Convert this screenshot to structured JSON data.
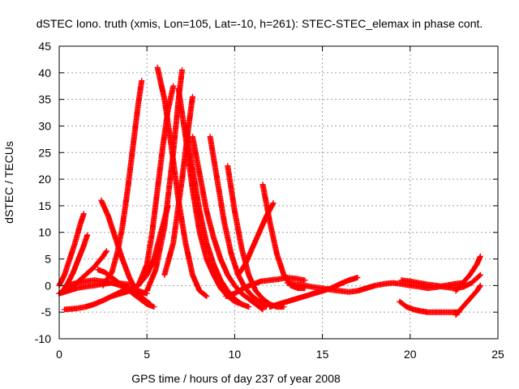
{
  "chart_data": {
    "type": "scatter",
    "title": "dSTEC Iono. truth (xmis, Lon=105, Lat=-10, h=261): STEC-STEC_elemax in phase cont.",
    "xlabel": "GPS time / hours of day 237 of year 2008",
    "ylabel": "dSTEC  / TECUs",
    "xlim": [
      0,
      25
    ],
    "ylim": [
      -10,
      45
    ],
    "xticks": [
      0,
      5,
      10,
      15,
      20,
      25
    ],
    "yticks": [
      -10,
      -5,
      0,
      5,
      10,
      15,
      20,
      25,
      30,
      35,
      40,
      45
    ],
    "grid": true,
    "marker": "+",
    "color": "#ff0000",
    "series": [
      {
        "x": [
          0.0,
          0.3,
          0.6,
          0.9,
          1.2,
          1.4
        ],
        "y": [
          0,
          2,
          5,
          8,
          11.5,
          13.5
        ]
      },
      {
        "x": [
          0.2,
          0.5,
          0.8,
          1.1,
          1.4,
          1.6
        ],
        "y": [
          -1,
          0.5,
          2.5,
          5,
          7.5,
          9.5
        ]
      },
      {
        "x": [
          0.0,
          0.5,
          1.0,
          1.5,
          2.0,
          2.5,
          2.7
        ],
        "y": [
          -1.5,
          -0.5,
          0.5,
          2,
          3.5,
          5.5,
          6.5
        ]
      },
      {
        "x": [
          0.0,
          0.5,
          1.0,
          1.5,
          2.0,
          2.5,
          3.0,
          3.5,
          4.0
        ],
        "y": [
          -1.5,
          -1,
          -0.5,
          -0.2,
          0,
          0.3,
          0.5,
          0.4,
          0.2
        ]
      },
      {
        "x": [
          0.3,
          1.0,
          1.5,
          2.0,
          2.5,
          3.0,
          3.5,
          4.0
        ],
        "y": [
          -4.5,
          -4.3,
          -4,
          -3.5,
          -2.8,
          -2,
          -1.2,
          -0.5
        ]
      },
      {
        "x": [
          0.5,
          1.0,
          1.5,
          2.0,
          2.5,
          3.0,
          3.5,
          4.0,
          4.5,
          5.0
        ],
        "y": [
          0,
          0.5,
          0.8,
          1,
          0.8,
          0.5,
          0,
          -0.5,
          -1,
          -1.5
        ]
      },
      {
        "x": [
          2.2,
          2.6,
          3.0,
          3.4,
          3.8,
          4.2,
          4.6,
          5.0,
          5.4
        ],
        "y": [
          3,
          2.5,
          1.5,
          0.5,
          -0.5,
          -1.5,
          -2.5,
          -3.5,
          -4
        ]
      },
      {
        "x": [
          2.4,
          2.8,
          3.2,
          3.6,
          4.0,
          4.4,
          4.8,
          5.2
        ],
        "y": [
          16,
          13,
          9,
          5,
          1.5,
          -1,
          -2.5,
          -3.5
        ]
      },
      {
        "x": [
          2.5,
          3.0,
          3.3,
          3.6,
          3.9,
          4.2,
          4.5,
          4.7
        ],
        "y": [
          0,
          2.5,
          6,
          11,
          18,
          26,
          34,
          38.5
        ]
      },
      {
        "x": [
          3.0,
          3.5,
          4.0,
          4.5,
          5.0,
          5.4,
          5.8,
          6.2
        ],
        "y": [
          -2,
          -1.5,
          -1,
          0,
          2,
          5,
          10,
          15
        ]
      },
      {
        "x": [
          5.6,
          6.0,
          6.4,
          6.8,
          7.2,
          7.6,
          8.0,
          8.4
        ],
        "y": [
          41,
          35,
          26,
          16,
          8,
          2,
          -1,
          -2
        ]
      },
      {
        "x": [
          4.5,
          5.0,
          5.3,
          5.6,
          5.9,
          6.2,
          6.5
        ],
        "y": [
          0,
          4,
          10,
          18,
          26,
          33,
          37.5
        ]
      },
      {
        "x": [
          5.0,
          5.5,
          6.0,
          6.5,
          6.8,
          7.0
        ],
        "y": [
          -1,
          3,
          11,
          25,
          35,
          40.5
        ]
      },
      {
        "x": [
          6.0,
          6.5,
          7.0,
          7.3,
          7.6
        ],
        "y": [
          2,
          8,
          20,
          28,
          35.5
        ]
      },
      {
        "x": [
          6.8,
          7.2,
          7.6,
          8.0,
          8.4,
          8.8,
          9.2,
          9.6,
          10.0,
          10.4
        ],
        "y": [
          37,
          28,
          18,
          10,
          5,
          2,
          -0.5,
          -2,
          -3,
          -3.5
        ]
      },
      {
        "x": [
          7.2,
          7.6,
          8.0,
          8.4,
          8.8,
          9.2,
          9.6,
          10.0,
          10.4,
          10.8
        ],
        "y": [
          30,
          22,
          14,
          8,
          4,
          1,
          -1,
          -2.5,
          -3.5,
          -4
        ]
      },
      {
        "x": [
          7.6,
          8.0,
          8.4,
          8.8,
          9.2,
          9.6,
          10.0,
          10.4,
          10.8,
          11.2,
          11.6
        ],
        "y": [
          28,
          21,
          14,
          9,
          5,
          2,
          0,
          -1.5,
          -2.5,
          -3.5,
          -4.5
        ]
      },
      {
        "x": [
          8.6,
          9.0,
          9.4,
          9.8,
          10.2,
          10.6,
          11.0,
          11.4,
          11.8
        ],
        "y": [
          28,
          20,
          12,
          6,
          2,
          -0.5,
          -2,
          -3,
          -4
        ]
      },
      {
        "x": [
          9.6,
          10.0,
          10.4,
          10.8,
          11.2,
          11.6,
          12.0,
          12.4,
          12.8
        ],
        "y": [
          22.5,
          14,
          7,
          2,
          -1,
          -2.5,
          -3.5,
          -4,
          -4
        ]
      },
      {
        "x": [
          9.5,
          10.0,
          10.5,
          11.0,
          11.5,
          12.0,
          12.5,
          13.0,
          13.5,
          14.0
        ],
        "y": [
          -2,
          -1.5,
          -0.5,
          0.2,
          0.8,
          1,
          1.2,
          1.5,
          1.3,
          1
        ]
      },
      {
        "x": [
          10.2,
          10.6,
          11.0,
          11.4,
          11.8,
          12.2
        ],
        "y": [
          2,
          4,
          7,
          10,
          13,
          15.5
        ]
      },
      {
        "x": [
          11.6,
          12.0,
          12.4,
          12.8,
          13.2,
          13.6,
          14.0
        ],
        "y": [
          19,
          12,
          6,
          2,
          0,
          -0.5,
          -0.5
        ]
      },
      {
        "x": [
          12.0,
          12.5,
          13.0,
          13.5,
          14.0,
          14.5,
          15.0,
          15.5,
          16.0,
          16.5,
          17.0
        ],
        "y": [
          -4,
          -3.5,
          -3,
          -2.5,
          -2,
          -1.5,
          -1,
          -0.5,
          0.3,
          1,
          1.5
        ]
      },
      {
        "x": [
          13.0,
          13.5,
          14.0,
          14.5,
          15.0,
          15.5,
          16.0,
          16.5,
          17.0,
          17.5,
          18.0,
          18.5,
          19.0,
          19.5,
          20.0,
          20.5,
          21.0,
          21.5,
          22.0,
          22.5,
          23.0
        ],
        "y": [
          0.5,
          0.2,
          0,
          -0.3,
          -0.5,
          -0.8,
          -1,
          -1.2,
          -1,
          -0.5,
          0,
          0.3,
          0.5,
          0.3,
          0,
          -0.2,
          -0.5,
          -0.3,
          0,
          0.3,
          0.5
        ]
      },
      {
        "x": [
          19.5,
          20.0,
          20.5,
          21.0,
          21.5,
          22.0,
          22.5,
          23.0,
          23.5,
          24.0
        ],
        "y": [
          1,
          0.8,
          0.5,
          0.2,
          0,
          -0.3,
          -0.5,
          -0.3,
          0.5,
          2
        ]
      },
      {
        "x": [
          19.4,
          19.8,
          20.2,
          20.6,
          21.0,
          21.5,
          22.0,
          22.5,
          22.8
        ],
        "y": [
          -3,
          -4,
          -4.5,
          -4.8,
          -5,
          -5,
          -5,
          -5,
          -5
        ]
      },
      {
        "x": [
          22.6,
          23.0,
          23.4,
          23.8,
          24.0
        ],
        "y": [
          -5.5,
          -4,
          -2.5,
          -1,
          0
        ]
      },
      {
        "x": [
          22.6,
          23.0,
          23.4,
          23.8,
          24.0
        ],
        "y": [
          -1,
          0.5,
          2,
          4,
          5.5
        ]
      }
    ]
  }
}
